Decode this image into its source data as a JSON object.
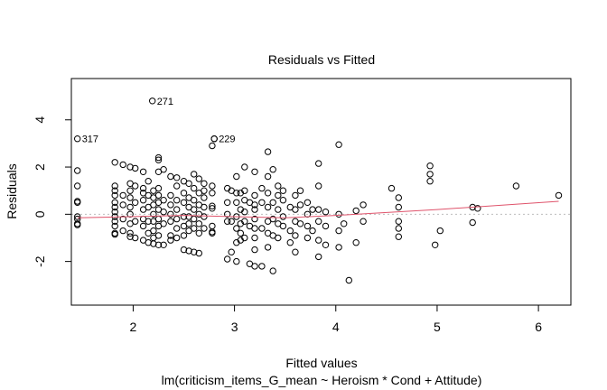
{
  "chart_data": {
    "type": "scatter",
    "title": "Residuals vs Fitted",
    "xlabel": "Fitted values",
    "subtitle": "lm(criticism_items_G_mean ~ Heroism * Cond + Attitude)",
    "ylabel": "Residuals",
    "xlim": [
      1.39,
      6.32
    ],
    "ylim": [
      -3.85,
      5.75
    ],
    "xticks": [
      2,
      3,
      4,
      5,
      6
    ],
    "yticks": [
      -2,
      0,
      2,
      4
    ],
    "zero_line_color": "#bdbdbd",
    "smooth_color": "#df536b",
    "smooth_line": [
      {
        "x": 1.45,
        "y": -0.15
      },
      {
        "x": 2.5,
        "y": -0.05
      },
      {
        "x": 3.5,
        "y": -0.15
      },
      {
        "x": 4.0,
        "y": -0.05
      },
      {
        "x": 5.0,
        "y": 0.2
      },
      {
        "x": 6.2,
        "y": 0.55
      }
    ],
    "labeled_points": [
      {
        "label": "271",
        "x": 2.19,
        "y": 4.8
      },
      {
        "label": "317",
        "x": 1.45,
        "y": 3.2
      },
      {
        "label": "229",
        "x": 2.8,
        "y": 3.2
      }
    ],
    "points": [
      [
        1.45,
        1.85
      ],
      [
        1.45,
        1.2
      ],
      [
        1.45,
        0.55
      ],
      [
        1.45,
        0.5
      ],
      [
        1.45,
        -0.1
      ],
      [
        1.45,
        -0.2
      ],
      [
        1.45,
        -0.4
      ],
      [
        1.45,
        -0.45
      ],
      [
        1.82,
        2.2
      ],
      [
        1.82,
        1.2
      ],
      [
        1.82,
        1.0
      ],
      [
        1.82,
        0.8
      ],
      [
        1.82,
        0.5
      ],
      [
        1.82,
        0.3
      ],
      [
        1.82,
        0.1
      ],
      [
        1.82,
        -0.1
      ],
      [
        1.82,
        -0.3
      ],
      [
        1.82,
        -0.5
      ],
      [
        1.82,
        -0.8
      ],
      [
        1.82,
        -0.85
      ],
      [
        1.9,
        2.1
      ],
      [
        1.9,
        0.8
      ],
      [
        1.9,
        0.4
      ],
      [
        1.9,
        -0.2
      ],
      [
        1.9,
        -0.7
      ],
      [
        1.97,
        2.0
      ],
      [
        1.97,
        1.3
      ],
      [
        1.97,
        1.0
      ],
      [
        1.97,
        0.7
      ],
      [
        1.97,
        0.3
      ],
      [
        1.97,
        0.0
      ],
      [
        1.97,
        -0.4
      ],
      [
        1.97,
        -0.8
      ],
      [
        1.97,
        -0.95
      ],
      [
        2.02,
        1.95
      ],
      [
        2.02,
        1.2
      ],
      [
        2.02,
        0.5
      ],
      [
        2.02,
        -0.3
      ],
      [
        2.02,
        -1.0
      ],
      [
        2.1,
        1.8
      ],
      [
        2.1,
        1.1
      ],
      [
        2.1,
        0.9
      ],
      [
        2.1,
        0.6
      ],
      [
        2.1,
        0.2
      ],
      [
        2.1,
        -0.2
      ],
      [
        2.1,
        -0.5
      ],
      [
        2.1,
        -1.1
      ],
      [
        2.15,
        1.4
      ],
      [
        2.15,
        0.8
      ],
      [
        2.15,
        0.3
      ],
      [
        2.15,
        -0.3
      ],
      [
        2.15,
        -0.8
      ],
      [
        2.15,
        -1.2
      ],
      [
        2.2,
        1.0
      ],
      [
        2.2,
        0.7
      ],
      [
        2.2,
        0.4
      ],
      [
        2.2,
        0.0
      ],
      [
        2.2,
        -0.3
      ],
      [
        2.2,
        -0.7
      ],
      [
        2.2,
        -1.0
      ],
      [
        2.2,
        -1.25
      ],
      [
        2.25,
        2.4
      ],
      [
        2.25,
        2.3
      ],
      [
        2.25,
        1.8
      ],
      [
        2.25,
        1.1
      ],
      [
        2.25,
        0.8
      ],
      [
        2.25,
        0.5
      ],
      [
        2.25,
        0.2
      ],
      [
        2.25,
        -0.2
      ],
      [
        2.25,
        -0.5
      ],
      [
        2.25,
        -0.9
      ],
      [
        2.25,
        -1.3
      ],
      [
        2.3,
        1.9
      ],
      [
        2.3,
        0.6
      ],
      [
        2.3,
        0.1
      ],
      [
        2.3,
        -0.4
      ],
      [
        2.3,
        -1.3
      ],
      [
        2.37,
        1.6
      ],
      [
        2.37,
        0.8
      ],
      [
        2.37,
        0.4
      ],
      [
        2.37,
        0.0
      ],
      [
        2.37,
        -0.3
      ],
      [
        2.37,
        -0.9
      ],
      [
        2.37,
        -1.1
      ],
      [
        2.43,
        1.55
      ],
      [
        2.43,
        1.2
      ],
      [
        2.43,
        0.6
      ],
      [
        2.43,
        0.2
      ],
      [
        2.43,
        -0.2
      ],
      [
        2.43,
        -0.6
      ],
      [
        2.43,
        -1.0
      ],
      [
        2.5,
        1.4
      ],
      [
        2.5,
        0.9
      ],
      [
        2.5,
        0.5
      ],
      [
        2.5,
        -0.1
      ],
      [
        2.5,
        -0.5
      ],
      [
        2.5,
        -0.9
      ],
      [
        2.5,
        -1.5
      ],
      [
        2.55,
        1.3
      ],
      [
        2.55,
        0.7
      ],
      [
        2.55,
        0.3
      ],
      [
        2.55,
        -0.1
      ],
      [
        2.55,
        -0.4
      ],
      [
        2.55,
        -0.7
      ],
      [
        2.55,
        -1.55
      ],
      [
        2.6,
        1.7
      ],
      [
        2.6,
        1.1
      ],
      [
        2.6,
        0.6
      ],
      [
        2.6,
        0.2
      ],
      [
        2.6,
        -0.2
      ],
      [
        2.6,
        -0.6
      ],
      [
        2.6,
        -1.6
      ],
      [
        2.65,
        1.5
      ],
      [
        2.65,
        0.9
      ],
      [
        2.65,
        0.4
      ],
      [
        2.65,
        0.0
      ],
      [
        2.65,
        -0.4
      ],
      [
        2.65,
        -0.8
      ],
      [
        2.65,
        -1.65
      ],
      [
        2.7,
        1.3
      ],
      [
        2.7,
        1.0
      ],
      [
        2.7,
        0.7
      ],
      [
        2.7,
        0.3
      ],
      [
        2.7,
        -0.1
      ],
      [
        2.7,
        -0.6
      ],
      [
        2.78,
        2.9
      ],
      [
        2.78,
        1.2
      ],
      [
        2.78,
        0.9
      ],
      [
        2.78,
        0.35
      ],
      [
        2.78,
        0.25
      ],
      [
        2.78,
        -0.5
      ],
      [
        2.78,
        -0.75
      ],
      [
        2.78,
        -0.8
      ],
      [
        2.8,
        3.2
      ],
      [
        2.93,
        1.1
      ],
      [
        2.93,
        0.5
      ],
      [
        2.93,
        0.0
      ],
      [
        2.93,
        -0.3
      ],
      [
        2.93,
        -1.9
      ],
      [
        2.97,
        1.0
      ],
      [
        2.97,
        -0.3
      ],
      [
        2.97,
        -1.6
      ],
      [
        3.02,
        1.6
      ],
      [
        3.02,
        0.9
      ],
      [
        3.02,
        0.5
      ],
      [
        3.02,
        -0.1
      ],
      [
        3.02,
        -0.6
      ],
      [
        3.02,
        -1.2
      ],
      [
        3.02,
        -2.0
      ],
      [
        3.06,
        0.9
      ],
      [
        3.06,
        0.2
      ],
      [
        3.06,
        -0.4
      ],
      [
        3.06,
        -0.8
      ],
      [
        3.06,
        -1.1
      ],
      [
        3.1,
        2.0
      ],
      [
        3.1,
        1.0
      ],
      [
        3.1,
        0.6
      ],
      [
        3.1,
        0.1
      ],
      [
        3.1,
        -0.3
      ],
      [
        3.1,
        -1.0
      ],
      [
        3.15,
        0.5
      ],
      [
        3.15,
        -0.5
      ],
      [
        3.15,
        -2.1
      ],
      [
        3.2,
        1.8
      ],
      [
        3.2,
        0.8
      ],
      [
        3.2,
        0.4
      ],
      [
        3.2,
        0.2
      ],
      [
        3.2,
        -0.2
      ],
      [
        3.2,
        -0.6
      ],
      [
        3.2,
        -1.0
      ],
      [
        3.2,
        -1.5
      ],
      [
        3.2,
        -2.2
      ],
      [
        3.27,
        1.1
      ],
      [
        3.27,
        0.5
      ],
      [
        3.27,
        -0.6
      ],
      [
        3.27,
        -2.2
      ],
      [
        3.33,
        2.65
      ],
      [
        3.33,
        1.6
      ],
      [
        3.33,
        0.9
      ],
      [
        3.33,
        0.3
      ],
      [
        3.33,
        -0.3
      ],
      [
        3.33,
        -0.8
      ],
      [
        3.33,
        -1.4
      ],
      [
        3.38,
        1.9
      ],
      [
        3.38,
        0.5
      ],
      [
        3.38,
        -0.2
      ],
      [
        3.38,
        -0.9
      ],
      [
        3.38,
        -2.4
      ],
      [
        3.43,
        1.2
      ],
      [
        3.43,
        0.8
      ],
      [
        3.43,
        0.2
      ],
      [
        3.43,
        -0.4
      ],
      [
        3.43,
        -1.0
      ],
      [
        3.48,
        1.0
      ],
      [
        3.48,
        0.6
      ],
      [
        3.48,
        -0.1
      ],
      [
        3.48,
        -0.5
      ],
      [
        3.55,
        0.3
      ],
      [
        3.55,
        -0.7
      ],
      [
        3.55,
        -1.2
      ],
      [
        3.6,
        0.8
      ],
      [
        3.6,
        0.2
      ],
      [
        3.6,
        -0.3
      ],
      [
        3.6,
        -0.9
      ],
      [
        3.6,
        -1.6
      ],
      [
        3.65,
        1.0
      ],
      [
        3.65,
        0.4
      ],
      [
        3.65,
        -0.4
      ],
      [
        3.72,
        0.5
      ],
      [
        3.72,
        0.0
      ],
      [
        3.72,
        -0.5
      ],
      [
        3.72,
        -1.0
      ],
      [
        3.77,
        0.2
      ],
      [
        3.77,
        -0.7
      ],
      [
        3.83,
        2.15
      ],
      [
        3.83,
        1.2
      ],
      [
        3.83,
        0.2
      ],
      [
        3.83,
        -0.3
      ],
      [
        3.83,
        -1.1
      ],
      [
        3.83,
        -1.8
      ],
      [
        3.9,
        0.1
      ],
      [
        3.9,
        -0.5
      ],
      [
        3.9,
        -1.3
      ],
      [
        4.03,
        2.95
      ],
      [
        4.03,
        0.0
      ],
      [
        4.03,
        -0.7
      ],
      [
        4.03,
        -1.4
      ],
      [
        4.08,
        -0.4
      ],
      [
        4.13,
        -2.8
      ],
      [
        4.2,
        0.15
      ],
      [
        4.2,
        -1.2
      ],
      [
        4.27,
        0.4
      ],
      [
        4.27,
        -0.3
      ],
      [
        4.55,
        1.1
      ],
      [
        4.62,
        0.7
      ],
      [
        4.62,
        0.3
      ],
      [
        4.62,
        -0.3
      ],
      [
        4.62,
        -0.6
      ],
      [
        4.62,
        -0.95
      ],
      [
        4.93,
        2.05
      ],
      [
        4.93,
        1.7
      ],
      [
        4.93,
        1.4
      ],
      [
        4.98,
        -1.3
      ],
      [
        5.03,
        -0.7
      ],
      [
        5.35,
        0.3
      ],
      [
        5.35,
        -0.35
      ],
      [
        5.4,
        0.25
      ],
      [
        5.78,
        1.2
      ],
      [
        6.2,
        0.8
      ]
    ]
  }
}
